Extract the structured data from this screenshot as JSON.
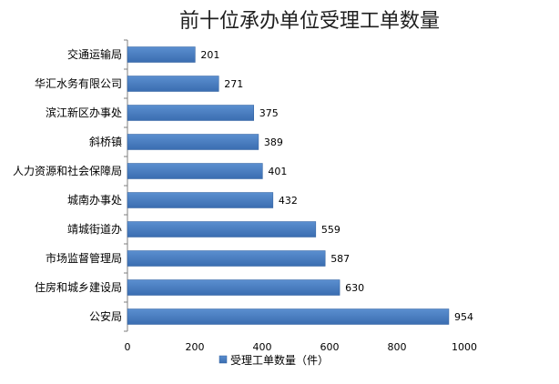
{
  "chart_data": {
    "type": "bar",
    "orientation": "horizontal",
    "title": "前十位承办单位受理工单数量",
    "xlabel": "",
    "ylabel": "",
    "categories": [
      "交通运输局",
      "华汇水务有限公司",
      "滨江新区办事处",
      "斜桥镇",
      "人力资源和社会保障局",
      "城南办事处",
      "靖城街道办",
      "市场监督管理局",
      "住房和城乡建设局",
      "公安局"
    ],
    "series": [
      {
        "name": "受理工单数量（件）",
        "values": [
          201,
          271,
          375,
          389,
          401,
          432,
          559,
          587,
          630,
          954
        ]
      }
    ],
    "xlim": [
      0,
      1000
    ],
    "ticks": [
      0,
      200,
      400,
      600,
      800,
      1000
    ],
    "grid": false,
    "legend": "bottom",
    "colors": {
      "bar": "#4a7fc1",
      "bar_edge": "#2f5f9e",
      "axis": "#7f7f7f"
    }
  }
}
